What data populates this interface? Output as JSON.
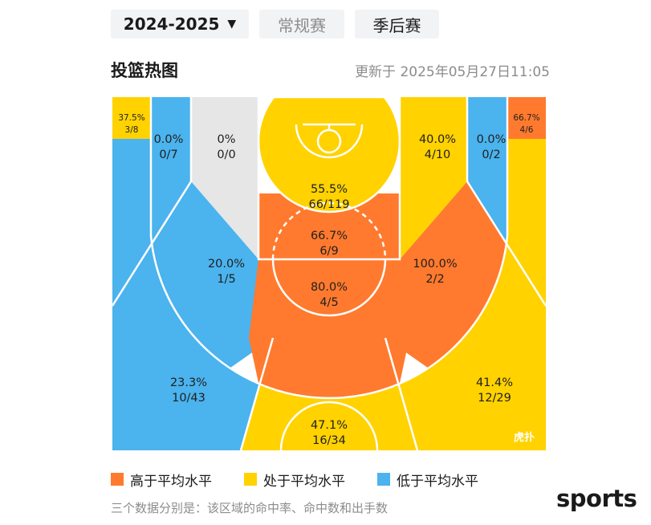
{
  "header": {
    "season": "2024-2025",
    "tabs": [
      {
        "label": "常规赛",
        "active": false
      },
      {
        "label": "季后赛",
        "active": true
      }
    ]
  },
  "heatmap": {
    "title": "投篮热图",
    "updated": "更新于 2025年05月27日11:05"
  },
  "legend": [
    {
      "label": "高于平均水平",
      "level": "above",
      "color": "#ff7a2e"
    },
    {
      "label": "处于平均水平",
      "level": "average",
      "color": "#ffd200"
    },
    {
      "label": "低于平均水平",
      "level": "below",
      "color": "#4bb3ee"
    }
  ],
  "footnote": "三个数据分别是：该区域的命中率、命中数和出手数",
  "brand": "sports",
  "watermark": "虎扑",
  "chart_data": {
    "type": "heatmap",
    "zones": [
      {
        "id": "left-corner-three",
        "pct": "37.5%",
        "made_att": "3/8",
        "level": "average"
      },
      {
        "id": "left-baseline-mid",
        "pct": "0.0%",
        "made_att": "0/7",
        "level": "below"
      },
      {
        "id": "left-short-mid",
        "pct": "0%",
        "made_att": "0/0",
        "level": "none"
      },
      {
        "id": "restricted-area",
        "pct": "55.5%",
        "made_att": "66/119",
        "level": "average"
      },
      {
        "id": "paint-non-ra",
        "pct": "66.7%",
        "made_att": "6/9",
        "level": "above"
      },
      {
        "id": "right-short-mid",
        "pct": "40.0%",
        "made_att": "4/10",
        "level": "average"
      },
      {
        "id": "right-baseline-mid",
        "pct": "0.0%",
        "made_att": "0/2",
        "level": "below"
      },
      {
        "id": "right-corner-three",
        "pct": "66.7%",
        "made_att": "4/6",
        "level": "above"
      },
      {
        "id": "left-elbow-mid",
        "pct": "20.0%",
        "made_att": "1/5",
        "level": "below"
      },
      {
        "id": "right-elbow-mid",
        "pct": "100.0%",
        "made_att": "2/2",
        "level": "above"
      },
      {
        "id": "top-key-mid",
        "pct": "80.0%",
        "made_att": "4/5",
        "level": "above"
      },
      {
        "id": "left-wing-three",
        "pct": "23.3%",
        "made_att": "10/43",
        "level": "below"
      },
      {
        "id": "top-three",
        "pct": "47.1%",
        "made_att": "16/34",
        "level": "average"
      },
      {
        "id": "right-wing-three",
        "pct": "41.4%",
        "made_att": "12/29",
        "level": "average"
      }
    ]
  }
}
